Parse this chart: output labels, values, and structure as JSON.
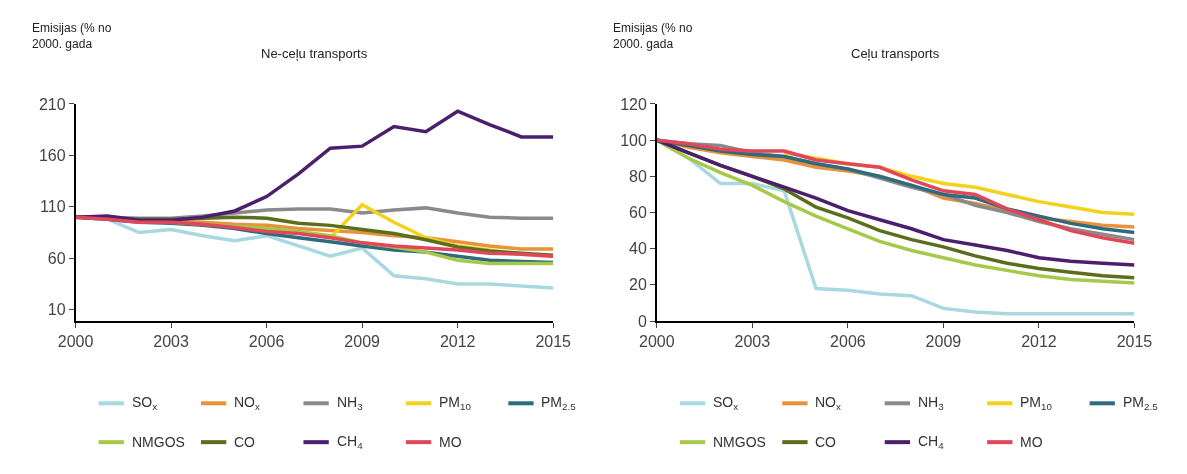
{
  "chart_data": [
    {
      "type": "line",
      "title": "Ne-ceļu transports",
      "ylabel": "Emisijas (% no\n2000. gada",
      "x": [
        2000,
        2001,
        2002,
        2003,
        2004,
        2005,
        2006,
        2007,
        2008,
        2009,
        2010,
        2011,
        2012,
        2013,
        2014,
        2015
      ],
      "xlim": [
        2000,
        2015
      ],
      "xticks": [
        2000,
        2003,
        2006,
        2009,
        2012,
        2015
      ],
      "ylim": [
        -1,
        210
      ],
      "yticks": [
        10,
        60,
        110,
        160,
        210
      ],
      "legend": "bottom",
      "marker": "none",
      "line_style": "solid",
      "series": [
        {
          "name": "SO$_{x}$",
          "color": "#a8d8e0",
          "values": [
            100,
            98,
            85,
            88,
            82,
            77,
            82,
            72,
            62,
            70,
            43,
            40,
            35,
            35,
            33,
            31
          ]
        },
        {
          "name": "NO$_{x}$",
          "color": "#e8923a",
          "values": [
            null,
            null,
            96,
            96,
            95,
            93,
            92,
            89,
            87,
            85,
            82,
            80,
            76,
            72,
            69,
            69
          ]
        },
        {
          "name": "NH$_{3}$",
          "color": "#8a8a8a",
          "values": [
            100,
            100,
            99,
            99,
            101,
            104,
            107,
            108,
            108,
            104,
            107,
            109,
            104,
            100,
            99,
            99
          ]
        },
        {
          "name": "PM$_{10}$",
          "color": "#f2d21b",
          "values": [
            null,
            null,
            null,
            null,
            null,
            null,
            null,
            null,
            80,
            112,
            95,
            80,
            72,
            68,
            64,
            62
          ]
        },
        {
          "name": "PM$_{2.5}$",
          "color": "#2e6b7e",
          "values": [
            100,
            98,
            95,
            94,
            92,
            89,
            84,
            80,
            76,
            72,
            68,
            66,
            62,
            58,
            57,
            56
          ]
        },
        {
          "name": "NMGOS",
          "color": "#a6c94a",
          "values": [
            null,
            null,
            null,
            95,
            93,
            91,
            89,
            86,
            82,
            75,
            71,
            66,
            58,
            55,
            55,
            55
          ]
        },
        {
          "name": "CO",
          "color": "#5b6e1e",
          "values": [
            100,
            99,
            98,
            98,
            99,
            100,
            99,
            94,
            92,
            88,
            84,
            78,
            71,
            67,
            65,
            63
          ]
        },
        {
          "name": "CH$_{4}$",
          "color": "#4b1f6e",
          "values": [
            100,
            101,
            97,
            97,
            100,
            106,
            120,
            142,
            167,
            169,
            188,
            183,
            203,
            190,
            178,
            178
          ]
        },
        {
          "name": "MO",
          "color": "#e0485a",
          "values": [
            100,
            98,
            95,
            95,
            93,
            90,
            86,
            84,
            80,
            75,
            72,
            70,
            68,
            65,
            64,
            62
          ]
        }
      ]
    },
    {
      "type": "line",
      "title": "Ceļu transports",
      "ylabel": "Emisijas (% no\n2000. gada",
      "x": [
        2000,
        2001,
        2002,
        2003,
        2004,
        2005,
        2006,
        2007,
        2008,
        2009,
        2010,
        2011,
        2012,
        2013,
        2014,
        2015
      ],
      "xlim": [
        2000,
        2015
      ],
      "xticks": [
        2000,
        2003,
        2006,
        2009,
        2012,
        2015
      ],
      "ylim": [
        0,
        120
      ],
      "yticks": [
        0,
        20,
        40,
        60,
        80,
        100,
        120
      ],
      "legend": "bottom",
      "marker": "none",
      "line_style": "solid",
      "series": [
        {
          "name": "SO$_{x}$",
          "color": "#a8d8e0",
          "values": [
            100,
            90,
            76,
            76,
            72,
            18,
            17,
            15,
            14,
            7,
            5,
            4,
            4,
            4,
            4,
            4
          ]
        },
        {
          "name": "NO$_{x}$",
          "color": "#e8923a",
          "values": [
            100,
            96,
            93,
            91,
            89,
            85,
            83,
            80,
            75,
            68,
            65,
            61,
            57,
            55,
            53,
            52
          ]
        },
        {
          "name": "NH$_{3}$",
          "color": "#8a8a8a",
          "values": [
            100,
            98,
            97,
            93,
            91,
            87,
            84,
            79,
            74,
            70,
            64,
            60,
            55,
            51,
            48,
            45
          ]
        },
        {
          "name": "PM$_{10}$",
          "color": "#f2d21b",
          "values": [
            null,
            null,
            null,
            null,
            93,
            90,
            87,
            85,
            80,
            76,
            74,
            70,
            66,
            63,
            60,
            59
          ]
        },
        {
          "name": "PM$_{2.5}$",
          "color": "#2e6b7e",
          "values": [
            100,
            97,
            94,
            92,
            91,
            87,
            84,
            80,
            75,
            70,
            68,
            62,
            58,
            54,
            51,
            49
          ]
        },
        {
          "name": "NMGOS",
          "color": "#a6c94a",
          "values": [
            100,
            90,
            82,
            75,
            66,
            58,
            51,
            44,
            39,
            35,
            31,
            28,
            25,
            23,
            22,
            21
          ]
        },
        {
          "name": "CO",
          "color": "#5b6e1e",
          "values": [
            100,
            93,
            86,
            80,
            73,
            63,
            57,
            50,
            45,
            41,
            36,
            32,
            29,
            27,
            25,
            24
          ]
        },
        {
          "name": "CH$_{4}$",
          "color": "#4b1f6e",
          "values": [
            100,
            93,
            86,
            80,
            74,
            68,
            61,
            56,
            51,
            45,
            42,
            39,
            35,
            33,
            32,
            31
          ]
        },
        {
          "name": "MO",
          "color": "#e0485a",
          "values": [
            100,
            98,
            95,
            94,
            94,
            89,
            87,
            85,
            78,
            72,
            70,
            62,
            56,
            50,
            46,
            43
          ]
        }
      ]
    }
  ]
}
